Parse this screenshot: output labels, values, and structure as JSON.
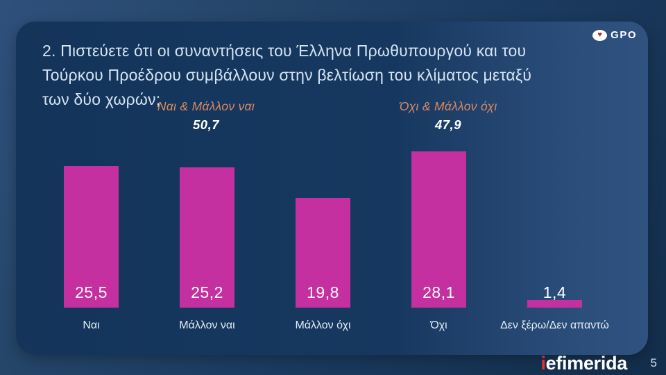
{
  "header": {
    "title_line1": "2. Πιστεύετε ότι οι συναντήσεις του Έλληνα Πρωθυπουργού και του",
    "title_line2": "Τούρκου Προέδρου συμβάλλουν στην βελτίωση του κλίματος μεταξύ των δύο χωρών;"
  },
  "logos": {
    "gpo_text": "GPO",
    "gpo_icon": "heart-icon",
    "gpo_heart_glyph": "♥",
    "publisher_first_letter": "i",
    "publisher_rest": "efimerida"
  },
  "footer": {
    "page_number": "5"
  },
  "chart_data": {
    "type": "bar",
    "title": "Πιστεύετε ότι οι συναντήσεις του Έλληνα Πρωθυπουργού και του Τούρκου Προέδρου συμβάλλουν στην βελτίωση του κλίματος μεταξύ των δύο χωρών;",
    "categories": [
      "Ναι",
      "Μάλλον ναι",
      "Μάλλον όχι",
      "Όχι",
      "Δεν ξέρω/Δεν απαντώ"
    ],
    "values": [
      25.5,
      25.2,
      19.8,
      28.1,
      1.4
    ],
    "value_labels": [
      "25,5",
      "25,2",
      "19,8",
      "28,1",
      "1,4"
    ],
    "groups": [
      {
        "label": "Ναι & Μάλλον ναι",
        "value": 50.7,
        "value_label": "50,7"
      },
      {
        "label": "Όχι & Μάλλον όχι",
        "value": 47.9,
        "value_label": "47,9"
      }
    ],
    "bar_color": "#c4309f",
    "accent_text_color": "#dd8a61",
    "value_text_color": "#ffffff",
    "ylim": [
      0,
      30
    ],
    "grid": false,
    "legend": "none"
  }
}
